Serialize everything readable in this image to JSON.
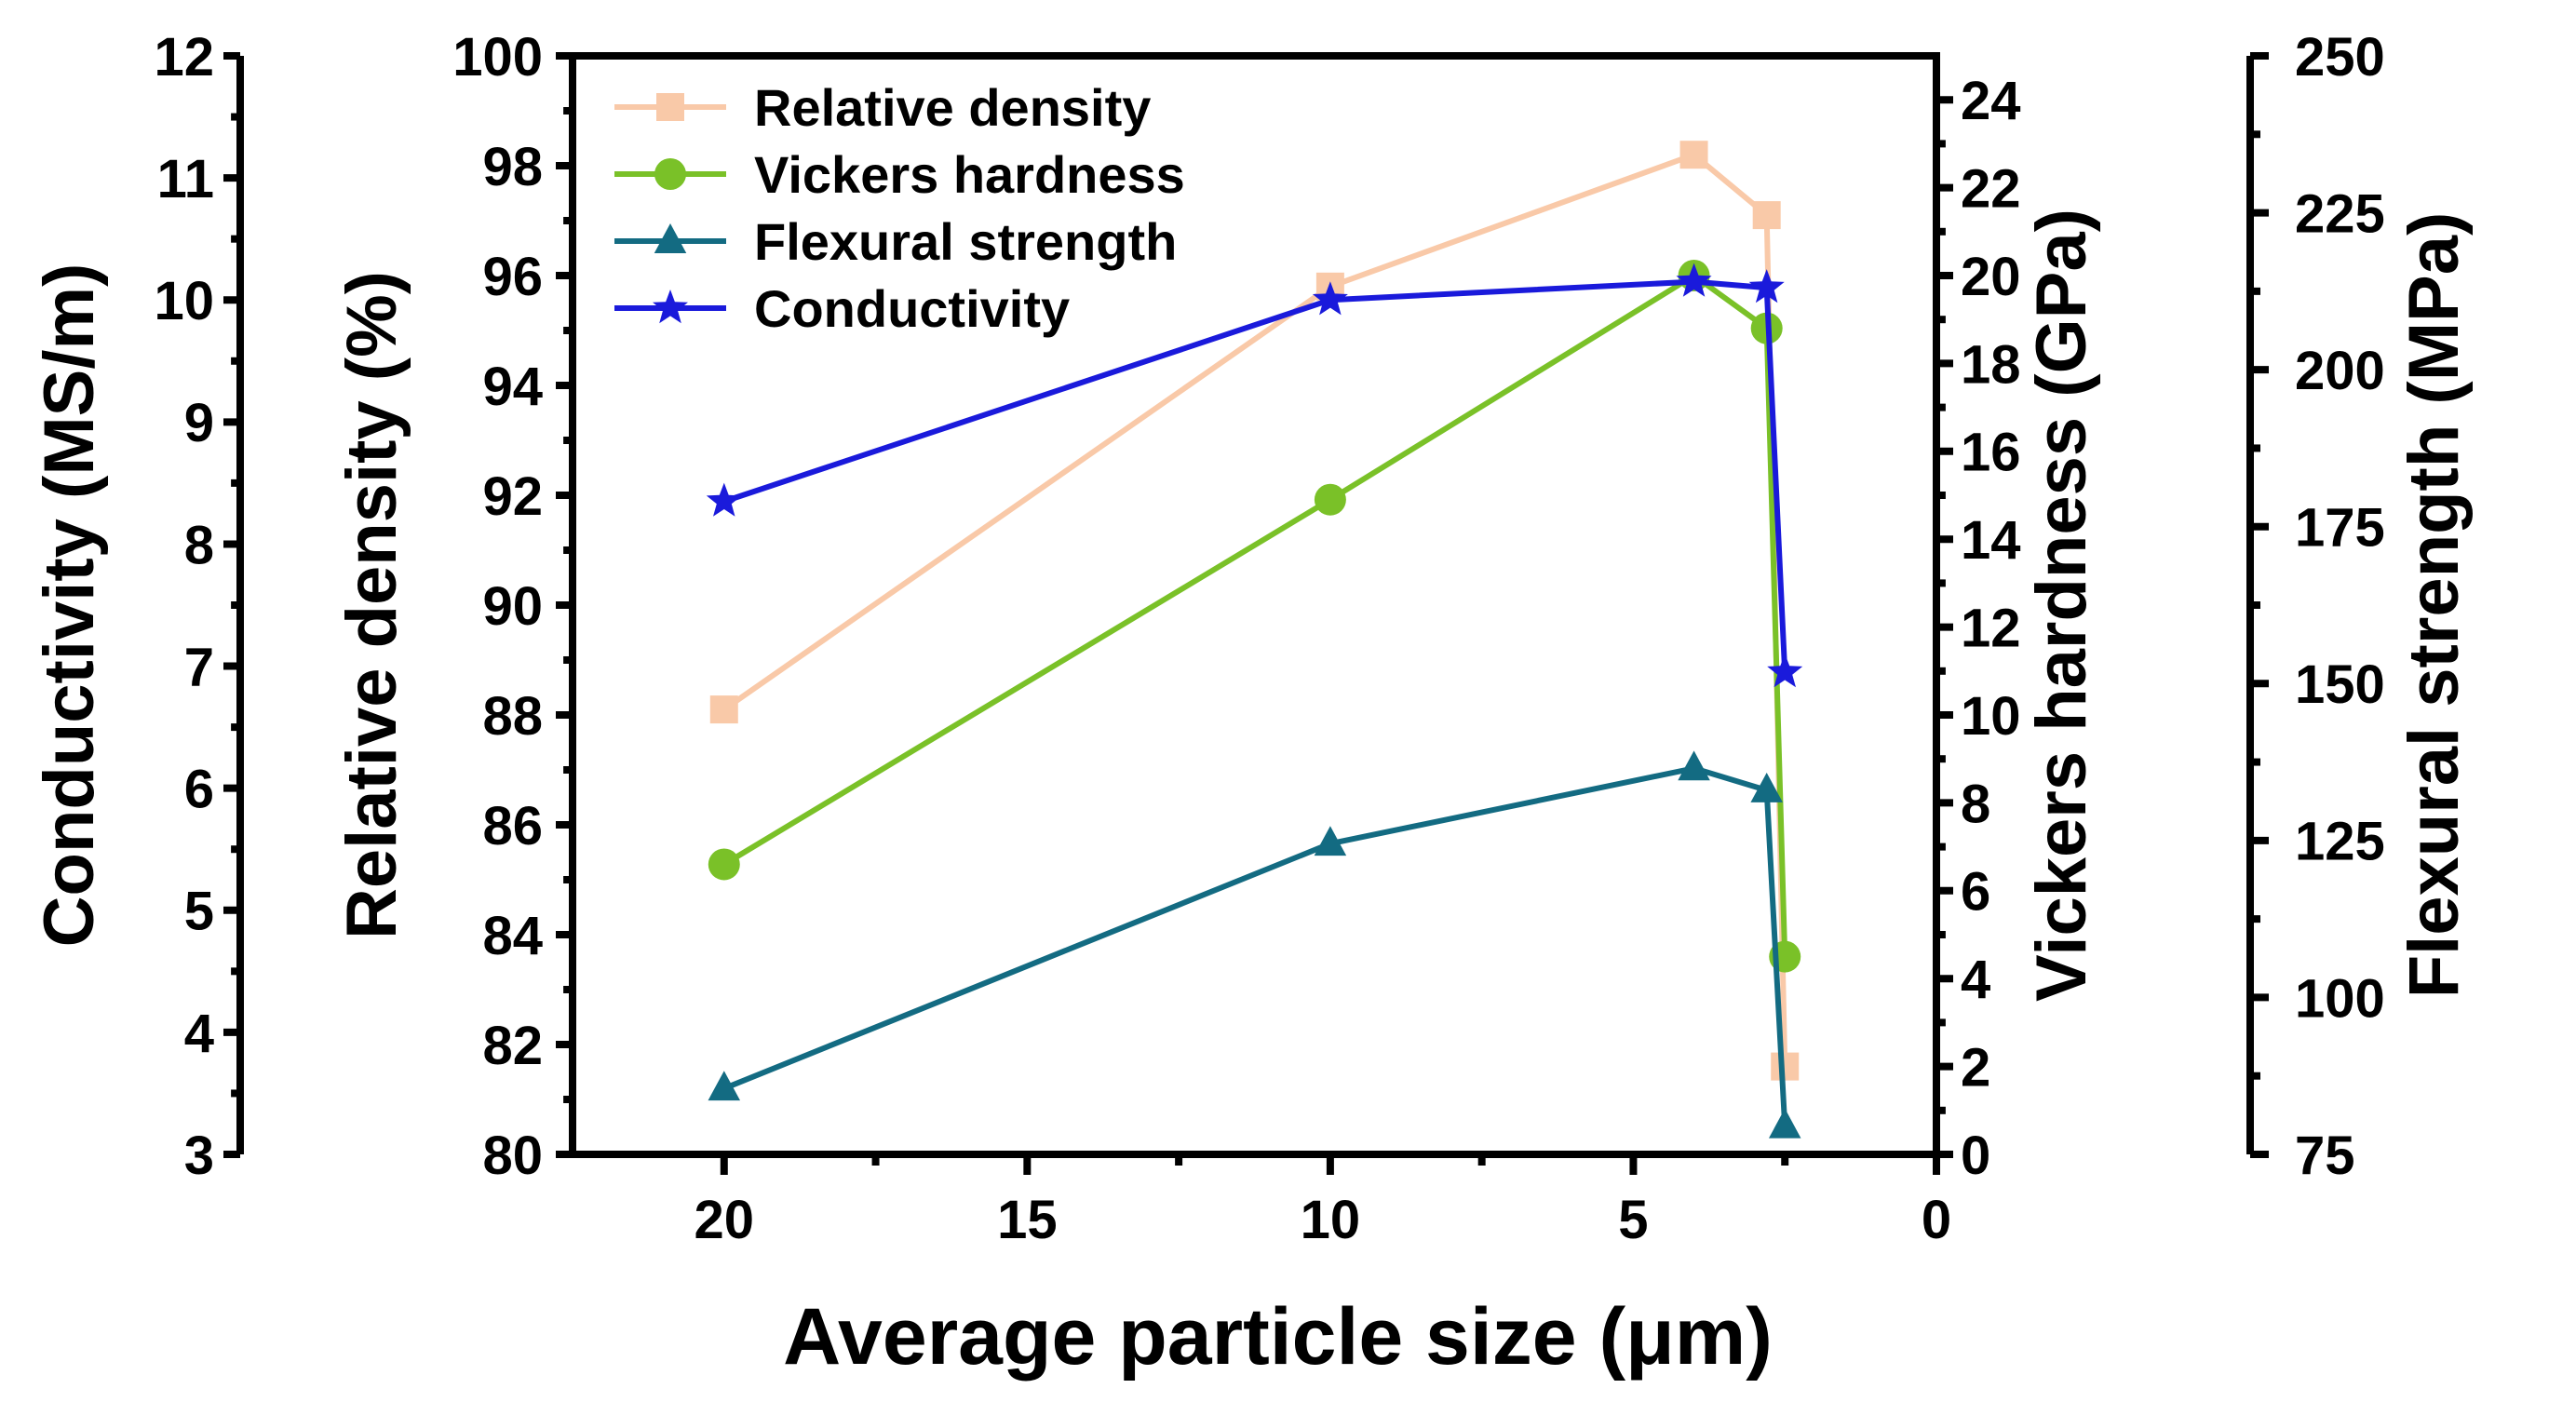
{
  "chart_data": {
    "type": "line",
    "xlabel": "Average particle size (μm)",
    "x_axis": {
      "range": [
        22.5,
        0
      ],
      "ticks": [
        20,
        15,
        10,
        5,
        0
      ],
      "tick_labels": [
        "20",
        "15",
        "10",
        "5",
        "0"
      ],
      "minor_step": 2.5
    },
    "axes": {
      "conductivity": {
        "label": "Conductivity (MS/m)",
        "range": [
          3,
          12
        ],
        "ticks": [
          3,
          4,
          5,
          6,
          7,
          8,
          9,
          10,
          11,
          12
        ],
        "tick_labels": [
          "3",
          "4",
          "5",
          "6",
          "7",
          "8",
          "9",
          "10",
          "11",
          "12"
        ]
      },
      "density": {
        "label": "Relative density (%)",
        "range": [
          80,
          100
        ],
        "ticks": [
          80,
          82,
          84,
          86,
          88,
          90,
          92,
          94,
          96,
          98,
          100
        ],
        "tick_labels": [
          "80",
          "82",
          "84",
          "86",
          "88",
          "90",
          "92",
          "94",
          "96",
          "98",
          "100"
        ]
      },
      "hardness": {
        "label": "Vickers hardness (GPa)",
        "range": [
          0,
          25
        ],
        "ticks": [
          0,
          2,
          4,
          6,
          8,
          10,
          12,
          14,
          16,
          18,
          20,
          22,
          24
        ],
        "tick_labels": [
          "0",
          "2",
          "4",
          "6",
          "8",
          "10",
          "12",
          "14",
          "16",
          "18",
          "20",
          "22",
          "24"
        ]
      },
      "flexural": {
        "label": "Flexural strength (MPa)",
        "range": [
          75,
          250
        ],
        "ticks": [
          75,
          100,
          125,
          150,
          175,
          200,
          225,
          250
        ],
        "tick_labels": [
          "75",
          "100",
          "125",
          "150",
          "175",
          "200",
          "225",
          "250"
        ]
      }
    },
    "series": [
      {
        "name": "Relative density",
        "axis": "density",
        "color": "#f9c9a8",
        "marker": "square",
        "x": [
          20,
          10,
          4,
          2.8,
          2.5
        ],
        "values": [
          88.1,
          95.8,
          98.2,
          97.1,
          81.6
        ]
      },
      {
        "name": "Vickers hardness",
        "axis": "hardness",
        "color": "#7ac128",
        "marker": "circle",
        "x": [
          20,
          10,
          4,
          2.8,
          2.5
        ],
        "values": [
          6.6,
          14.9,
          20.0,
          18.8,
          4.5
        ]
      },
      {
        "name": "Flexural strength",
        "axis": "flexural",
        "color": "#136b82",
        "marker": "triangle",
        "x": [
          20,
          10,
          4,
          2.8,
          2.5
        ],
        "values": [
          85.5,
          124.5,
          136.5,
          133.0,
          79.5
        ]
      },
      {
        "name": "Conductivity",
        "axis": "conductivity",
        "color": "#1a1adb",
        "marker": "star",
        "x": [
          20,
          10,
          4,
          2.8,
          2.5
        ],
        "values": [
          8.35,
          10.0,
          10.15,
          10.1,
          6.95
        ]
      }
    ],
    "legend_position": "top-left"
  }
}
